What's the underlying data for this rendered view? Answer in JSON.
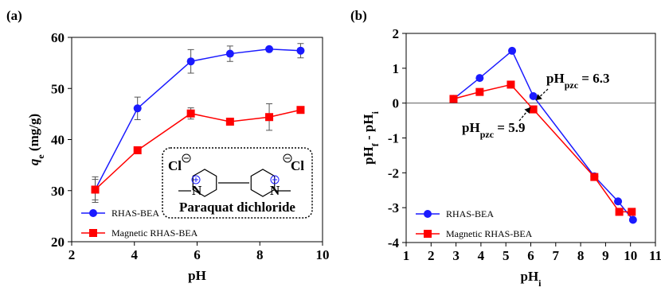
{
  "chart_data": [
    {
      "type": "line",
      "label": "(a)",
      "xlabel": [
        "pH"
      ],
      "ylabel": [
        "q",
        "e",
        " (mg/g)"
      ],
      "xlim": [
        2,
        10
      ],
      "xticks": [
        2,
        4,
        6,
        8,
        10
      ],
      "ylim": [
        20,
        60
      ],
      "yticks": [
        20,
        30,
        40,
        50,
        60
      ],
      "legend": "lower left",
      "series": [
        {
          "name": "RHAS-BEA",
          "color": "#1a1aff",
          "marker": "circle",
          "x": [
            2.75,
            4.1,
            5.8,
            7.05,
            8.3,
            9.3
          ],
          "values": [
            30.2,
            46.1,
            55.3,
            56.8,
            57.7,
            57.4
          ],
          "errors": [
            2.5,
            2.2,
            2.3,
            1.5,
            null,
            1.4
          ]
        },
        {
          "name": "Magnetic RHAS-BEA",
          "color": "#ff0000",
          "marker": "square",
          "x": [
            2.75,
            4.1,
            5.8,
            7.05,
            8.3,
            9.3
          ],
          "values": [
            30.2,
            37.9,
            45.1,
            43.5,
            44.4,
            45.8
          ],
          "errors": [
            2.0,
            0.7,
            1.1,
            null,
            2.6,
            null
          ]
        }
      ],
      "inset": {
        "atoms": [
          "Cl",
          "N",
          "N",
          "Cl"
        ],
        "caption": "Paraquat dichloride"
      }
    },
    {
      "type": "line",
      "label": "(b)",
      "xlabel": [
        "pH",
        "i"
      ],
      "ylabel": [
        "pH",
        "f",
        " - pH",
        "i"
      ],
      "xlim": [
        1,
        11
      ],
      "xticks": [
        1,
        2,
        3,
        4,
        5,
        6,
        7,
        8,
        9,
        10,
        11
      ],
      "ylim": [
        -4,
        2
      ],
      "yticks": [
        -4,
        -3,
        -2,
        -1,
        0,
        1,
        2
      ],
      "zero_line": 0,
      "legend": "lower left",
      "series": [
        {
          "name": "RHAS-BEA",
          "color": "#1a1aff",
          "marker": "circle",
          "x": [
            2.9,
            3.95,
            5.25,
            6.1,
            8.55,
            9.5,
            10.1
          ],
          "values": [
            0.12,
            0.72,
            1.5,
            0.2,
            -2.1,
            -2.82,
            -3.35
          ]
        },
        {
          "name": "Magnetic RHAS-BEA",
          "color": "#ff0000",
          "marker": "square",
          "x": [
            2.9,
            3.95,
            5.2,
            6.1,
            8.55,
            9.55,
            10.05
          ],
          "values": [
            0.12,
            0.32,
            0.53,
            -0.18,
            -2.12,
            -3.12,
            -3.12
          ]
        }
      ],
      "annotations": [
        [
          "pH",
          "pzc",
          " = 6.3"
        ],
        [
          "pH",
          "pzc",
          " = 5.9"
        ]
      ]
    }
  ]
}
